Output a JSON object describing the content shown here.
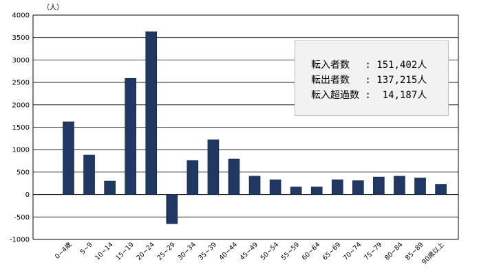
{
  "chart_data": {
    "type": "bar",
    "unit_label": "（人）",
    "categories": [
      "0~4歳",
      "5~9",
      "10~14",
      "15~19",
      "20~24",
      "25~29",
      "30~34",
      "35~39",
      "40~44",
      "45~49",
      "50~54",
      "55~59",
      "60~64",
      "65~69",
      "70~74",
      "75~79",
      "80~84",
      "85~89",
      "90歳以上"
    ],
    "series": [
      {
        "values": [
          1620,
          880,
          300,
          2590,
          3630,
          -650,
          760,
          1220,
          790,
          410,
          330,
          170,
          170,
          330,
          310,
          390,
          410,
          370,
          230
        ]
      }
    ],
    "ylim": [
      -1000,
      4000
    ],
    "yticks": [
      "4000",
      "3500",
      "3000",
      "2500",
      "2000",
      "1500",
      "1000",
      "500",
      "0",
      "-500",
      "-1000"
    ],
    "grid": true,
    "bar_color": "#1f3864",
    "legend_position": "top-right",
    "summary": {
      "line1": "転入者数　 : 151,402人",
      "line2": "転出者数　 : 137,215人",
      "line3": "転入超過数 :  14,187人"
    }
  }
}
